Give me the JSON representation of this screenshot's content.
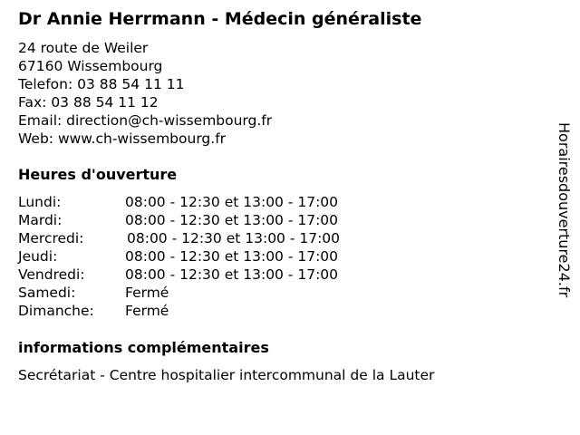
{
  "title": "Dr Annie Herrmann - Médecin généraliste",
  "contact": {
    "street": "24 route de Weiler",
    "city": "67160 Wissembourg",
    "phone": "Telefon: 03 88 54 11 11",
    "fax": "Fax: 03 88 54 11 12",
    "email": "Email: direction@ch-wissembourg.fr",
    "web": "Web: www.ch-wissembourg.fr"
  },
  "hours": {
    "heading": "Heures d'ouverture",
    "rows": [
      {
        "day": "Lundi:",
        "time": "08:00 - 12:30 et 13:00 - 17:00"
      },
      {
        "day": "Mardi:",
        "time": "08:00 - 12:30 et 13:00 - 17:00"
      },
      {
        "day": "Mercredi:",
        "time": "08:00 - 12:30 et 13:00 - 17:00"
      },
      {
        "day": "Jeudi:",
        "time": "08:00 - 12:30 et 13:00 - 17:00"
      },
      {
        "day": "Vendredi:",
        "time": "08:00 - 12:30 et 13:00 - 17:00"
      },
      {
        "day": "Samedi:",
        "time": "Fermé"
      },
      {
        "day": "Dimanche:",
        "time": "Fermé"
      }
    ]
  },
  "info": {
    "heading": "informations complémentaires",
    "text": "Secrétariat - Centre hospitalier intercommunal de la Lauter"
  },
  "watermark": "Horairesdouverture24.fr"
}
